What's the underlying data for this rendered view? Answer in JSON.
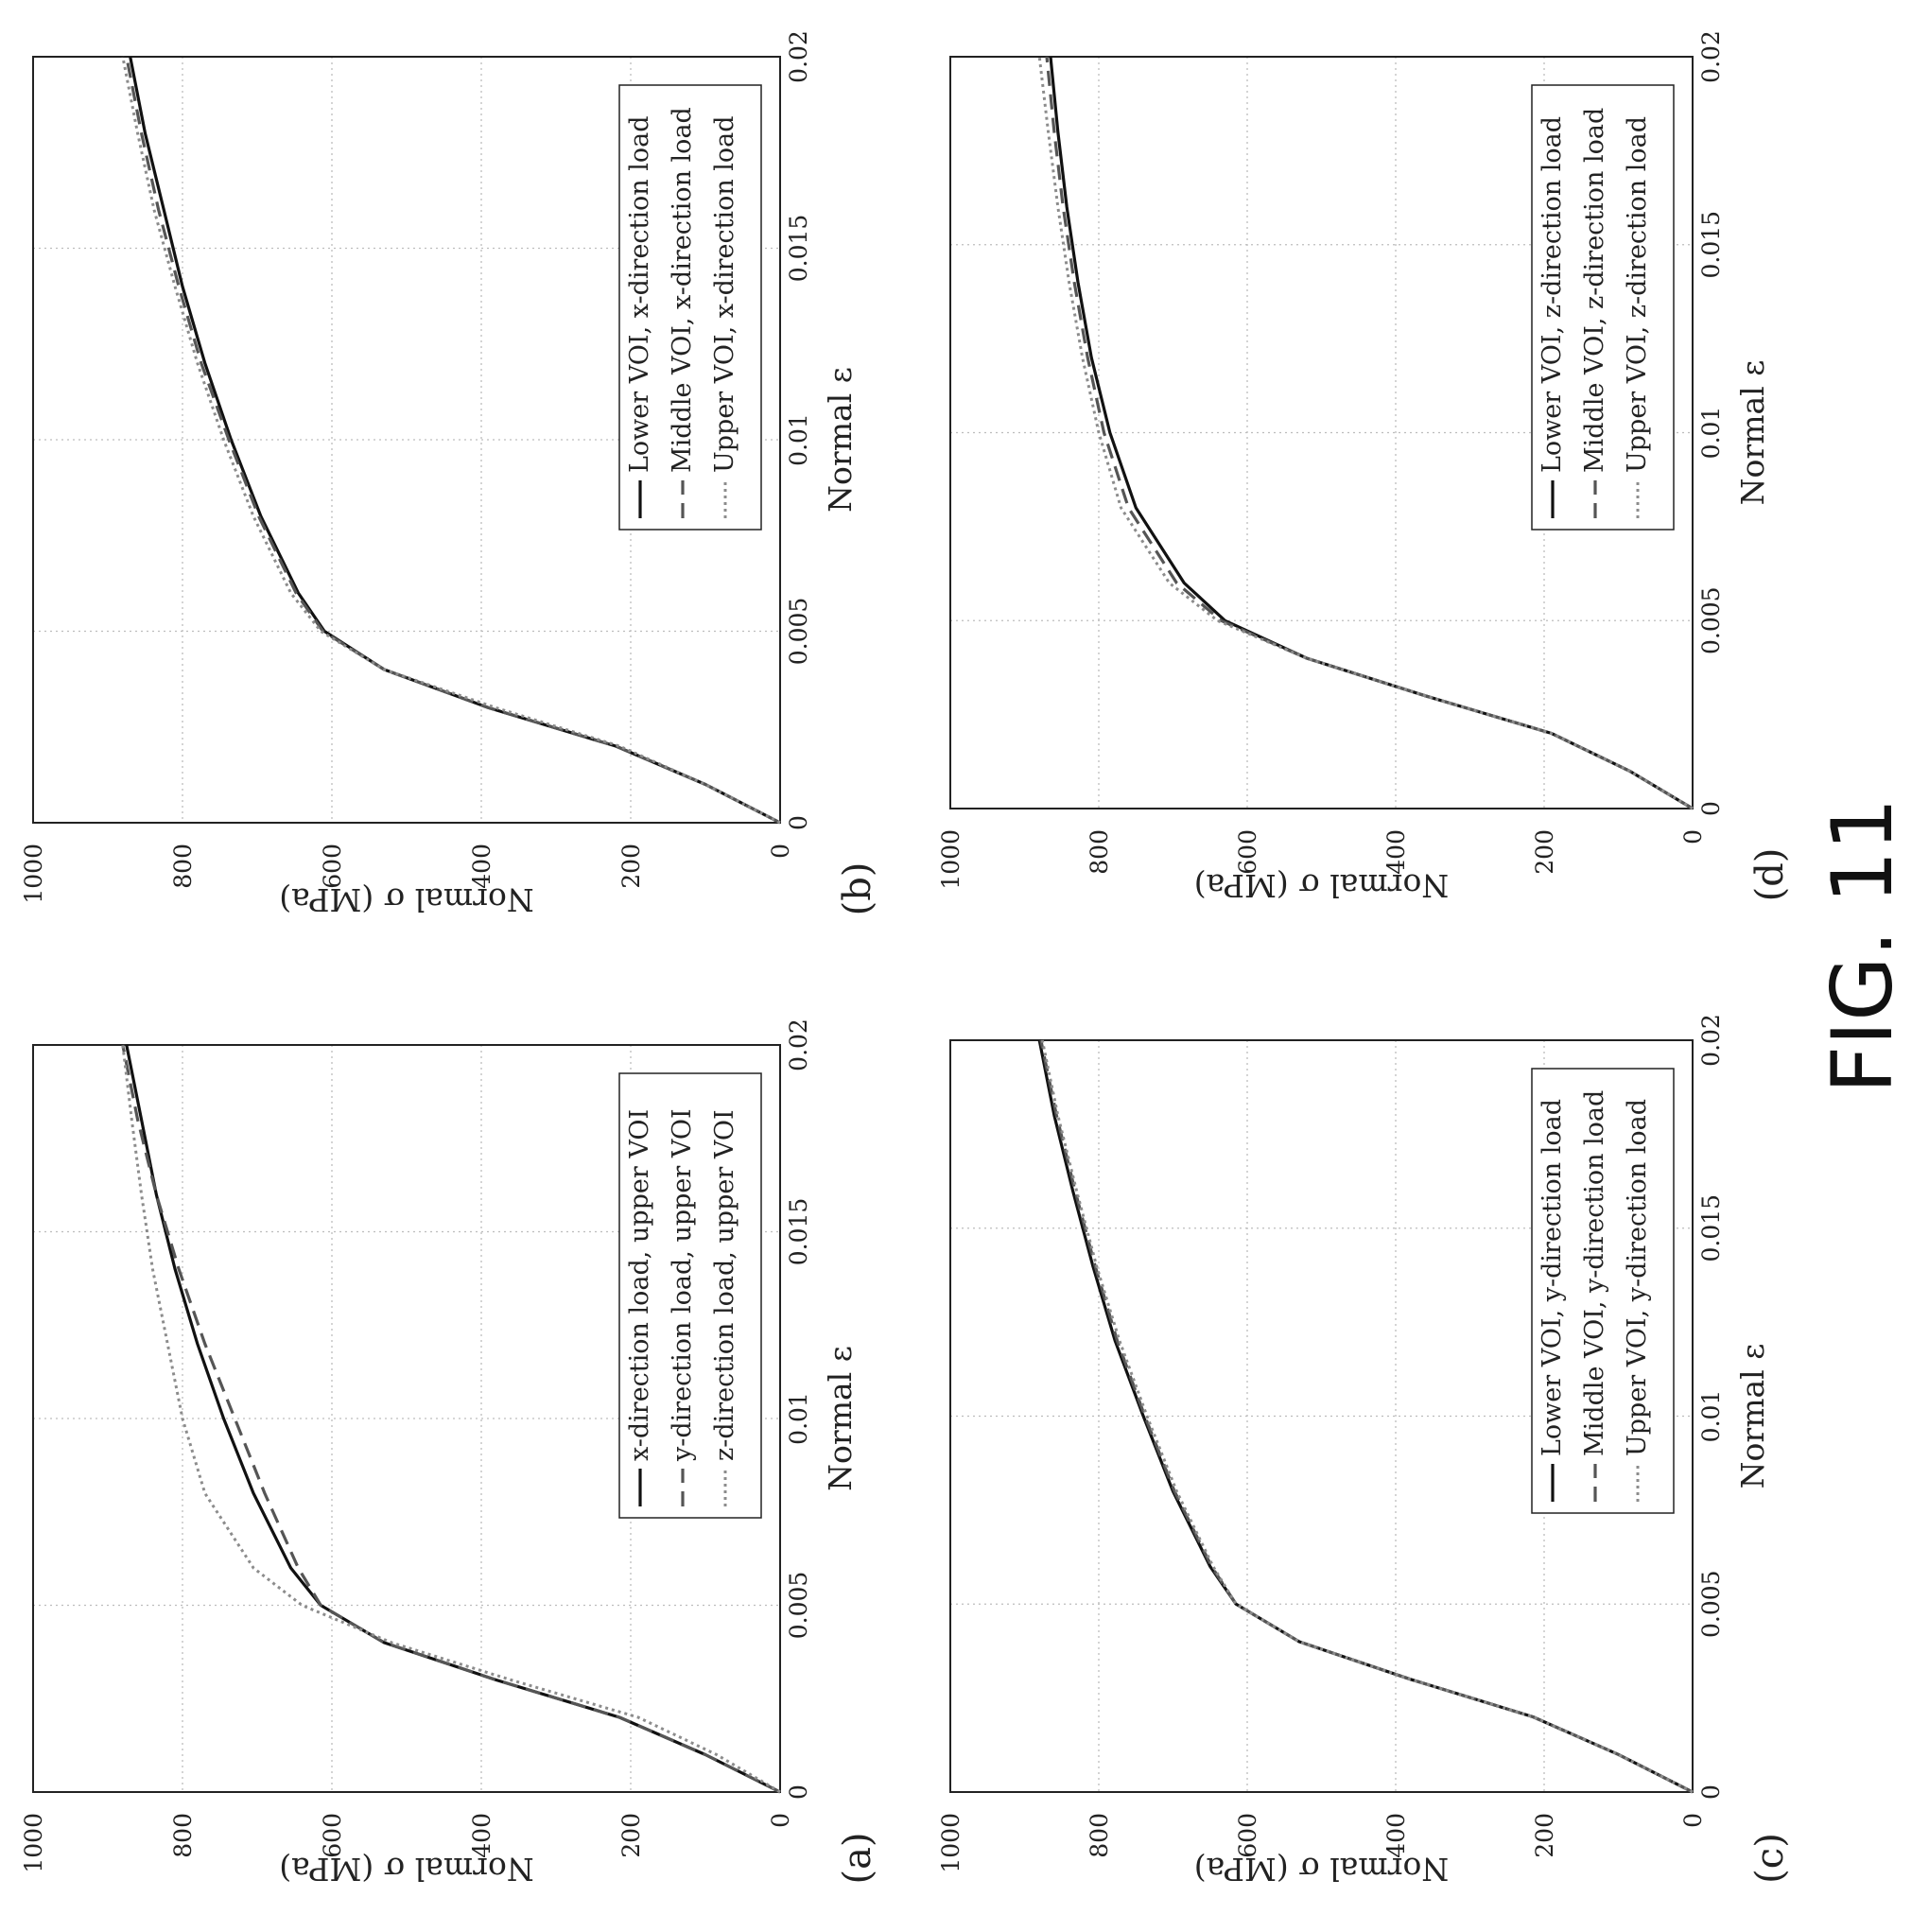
{
  "figure_label": "FIG. 11",
  "colors": {
    "axis": "#222222",
    "grid": "#bdbdbd",
    "lower": "#111111",
    "middle": "#555555",
    "upper": "#8c8c8c"
  },
  "chart_data": [
    {
      "panel": "(a)",
      "type": "line",
      "xlabel": "Normal ε",
      "ylabel": "Normal σ (MPa)",
      "xlim": [
        0,
        0.02
      ],
      "ylim": [
        0,
        1000
      ],
      "xticks": [
        "0",
        "0.005",
        "0.01",
        "0.015",
        "0.02"
      ],
      "yticks": [
        "0",
        "200",
        "400",
        "600",
        "800",
        "1000"
      ],
      "grid": true,
      "legend": "top-right",
      "series": [
        {
          "name": "x-direction load, upper VOI",
          "style": "solid",
          "x": [
            0,
            0.001,
            0.002,
            0.003,
            0.004,
            0.005,
            0.006,
            0.008,
            0.01,
            0.012,
            0.014,
            0.016,
            0.018,
            0.02
          ],
          "y": [
            0,
            100,
            215,
            380,
            530,
            615,
            655,
            705,
            745,
            780,
            810,
            835,
            855,
            875
          ]
        },
        {
          "name": "y-direction load, upper VOI",
          "style": "dashed",
          "x": [
            0,
            0.001,
            0.002,
            0.003,
            0.004,
            0.005,
            0.006,
            0.008,
            0.01,
            0.012,
            0.014,
            0.016,
            0.018,
            0.02
          ],
          "y": [
            0,
            100,
            215,
            380,
            530,
            615,
            645,
            690,
            730,
            770,
            805,
            835,
            860,
            880
          ]
        },
        {
          "name": "z-direction load, upper VOI",
          "style": "dotted",
          "x": [
            0,
            0.001,
            0.002,
            0.003,
            0.004,
            0.005,
            0.006,
            0.008,
            0.01,
            0.012,
            0.014,
            0.016,
            0.018,
            0.02
          ],
          "y": [
            0,
            85,
            190,
            360,
            520,
            640,
            705,
            770,
            800,
            820,
            840,
            855,
            868,
            880
          ]
        }
      ]
    },
    {
      "panel": "(b)",
      "type": "line",
      "xlabel": "Normal ε",
      "ylabel": "Normal σ (MPa)",
      "xlim": [
        0,
        0.02
      ],
      "ylim": [
        0,
        1000
      ],
      "xticks": [
        "0",
        "0.005",
        "0.01",
        "0.015",
        "0.02"
      ],
      "yticks": [
        "0",
        "200",
        "400",
        "600",
        "800",
        "1000"
      ],
      "grid": true,
      "legend": "top-right",
      "series": [
        {
          "name": "Lower VOI, x-direction load",
          "style": "solid",
          "x": [
            0,
            0.001,
            0.002,
            0.003,
            0.004,
            0.005,
            0.006,
            0.008,
            0.01,
            0.012,
            0.014,
            0.016,
            0.018,
            0.02
          ],
          "y": [
            0,
            100,
            220,
            390,
            530,
            610,
            645,
            695,
            735,
            770,
            800,
            825,
            850,
            870
          ]
        },
        {
          "name": "Middle VOI, x-direction load",
          "style": "dashed",
          "x": [
            0,
            0.001,
            0.002,
            0.003,
            0.004,
            0.005,
            0.006,
            0.008,
            0.01,
            0.012,
            0.014,
            0.016,
            0.018,
            0.02
          ],
          "y": [
            0,
            100,
            220,
            390,
            530,
            612,
            648,
            698,
            738,
            775,
            805,
            832,
            855,
            875
          ]
        },
        {
          "name": "Upper VOI, x-direction load",
          "style": "dotted",
          "x": [
            0,
            0.001,
            0.002,
            0.003,
            0.004,
            0.005,
            0.006,
            0.008,
            0.01,
            0.012,
            0.014,
            0.016,
            0.018,
            0.02
          ],
          "y": [
            0,
            100,
            215,
            380,
            530,
            615,
            655,
            705,
            745,
            780,
            810,
            838,
            860,
            880
          ]
        }
      ]
    },
    {
      "panel": "(c)",
      "type": "line",
      "xlabel": "Normal ε",
      "ylabel": "Normal σ (MPa)",
      "xlim": [
        0,
        0.02
      ],
      "ylim": [
        0,
        1000
      ],
      "xticks": [
        "0",
        "0.005",
        "0.01",
        "0.015",
        "0.02"
      ],
      "yticks": [
        "0",
        "200",
        "400",
        "600",
        "800",
        "1000"
      ],
      "grid": true,
      "legend": "top-right",
      "series": [
        {
          "name": "Lower VOI, y-direction load",
          "style": "solid",
          "x": [
            0,
            0.001,
            0.002,
            0.003,
            0.004,
            0.005,
            0.006,
            0.008,
            0.01,
            0.012,
            0.014,
            0.016,
            0.018,
            0.02
          ],
          "y": [
            0,
            100,
            215,
            380,
            530,
            615,
            650,
            700,
            740,
            778,
            808,
            835,
            860,
            880
          ]
        },
        {
          "name": "Middle VOI, y-direction load",
          "style": "dashed",
          "x": [
            0,
            0.001,
            0.002,
            0.003,
            0.004,
            0.005,
            0.006,
            0.008,
            0.01,
            0.012,
            0.014,
            0.016,
            0.018,
            0.02
          ],
          "y": [
            0,
            100,
            215,
            380,
            530,
            615,
            648,
            698,
            738,
            775,
            805,
            832,
            857,
            878
          ]
        },
        {
          "name": "Upper VOI, y-direction load",
          "style": "dotted",
          "x": [
            0,
            0.001,
            0.002,
            0.003,
            0.004,
            0.005,
            0.006,
            0.008,
            0.01,
            0.012,
            0.014,
            0.016,
            0.018,
            0.02
          ],
          "y": [
            0,
            100,
            215,
            380,
            530,
            615,
            646,
            695,
            735,
            772,
            803,
            830,
            855,
            876
          ]
        }
      ]
    },
    {
      "panel": "(d)",
      "type": "line",
      "xlabel": "Normal ε",
      "ylabel": "Normal σ (MPa)",
      "xlim": [
        0,
        0.02
      ],
      "ylim": [
        0,
        1000
      ],
      "xticks": [
        "0",
        "0.005",
        "0.01",
        "0.015",
        "0.02"
      ],
      "yticks": [
        "0",
        "200",
        "400",
        "600",
        "800",
        "1000"
      ],
      "grid": true,
      "legend": "top-right",
      "series": [
        {
          "name": "Lower VOI, z-direction load",
          "style": "solid",
          "x": [
            0,
            0.001,
            0.002,
            0.003,
            0.004,
            0.005,
            0.006,
            0.008,
            0.01,
            0.012,
            0.014,
            0.016,
            0.018,
            0.02
          ],
          "y": [
            0,
            85,
            190,
            360,
            520,
            630,
            685,
            750,
            785,
            810,
            828,
            843,
            855,
            865
          ]
        },
        {
          "name": "Middle VOI, z-direction load",
          "style": "dashed",
          "x": [
            0,
            0.001,
            0.002,
            0.003,
            0.004,
            0.005,
            0.006,
            0.008,
            0.01,
            0.012,
            0.014,
            0.016,
            0.018,
            0.02
          ],
          "y": [
            0,
            85,
            190,
            360,
            520,
            635,
            695,
            760,
            793,
            815,
            833,
            848,
            860,
            870
          ]
        },
        {
          "name": "Upper VOI, z-direction load",
          "style": "dotted",
          "x": [
            0,
            0.001,
            0.002,
            0.003,
            0.004,
            0.005,
            0.006,
            0.008,
            0.01,
            0.012,
            0.014,
            0.016,
            0.018,
            0.02
          ],
          "y": [
            0,
            85,
            190,
            360,
            520,
            640,
            705,
            770,
            800,
            822,
            840,
            855,
            868,
            880
          ]
        }
      ]
    }
  ]
}
